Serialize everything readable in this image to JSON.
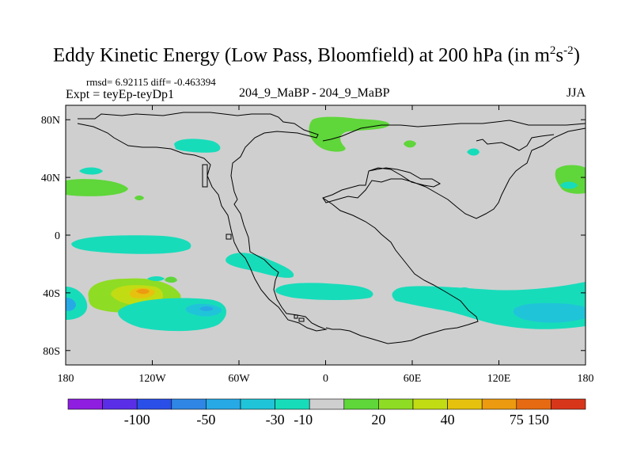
{
  "title_main": "Eddy Kinetic Energy (Low Pass, Bloomfield) at 200 hPa (in m",
  "title_exp1": "2",
  "title_s": "s",
  "title_exp2": "-2",
  "title_close": ")",
  "stats": "rmsd= 6.92115 diff= -0.463394",
  "expt": "Expt = teyEp-teyDp1",
  "case": "204_9_MaBP - 204_9_MaBP",
  "season": "JJA",
  "colors": {
    "ocean": "#cfcfcf",
    "palette": [
      "#8f1ee0",
      "#5a2ee6",
      "#2a4fe8",
      "#2f86e4",
      "#27a9e6",
      "#20c4d8",
      "#17dcba",
      "#cfcfcf",
      "#5fd63a",
      "#8fdc24",
      "#c2dc14",
      "#e6c20e",
      "#ec9a10",
      "#e66a12",
      "#d8361a"
    ]
  },
  "chart_data": {
    "type": "contour_map",
    "variable": "Eddy Kinetic Energy difference",
    "units": "m2 s-2",
    "x_ticks": [
      "180",
      "120W",
      "60W",
      "0",
      "60E",
      "120E",
      "180"
    ],
    "y_ticks": [
      "80N",
      "40N",
      "0",
      "40S",
      "80S"
    ],
    "lon_range": [
      -180,
      180
    ],
    "lat_range": [
      -90,
      90
    ],
    "colorbar_labels": [
      "-100",
      "-50",
      "-30",
      "-10",
      "20",
      "40",
      "75",
      "150"
    ],
    "levels": [
      -150,
      -100,
      -75,
      -50,
      -40,
      -30,
      -20,
      -10,
      10,
      20,
      30,
      40,
      50,
      75,
      100,
      150
    ],
    "features": [
      {
        "lon": -128,
        "lat": -40,
        "value": 50
      },
      {
        "lon": -82,
        "lat": -52,
        "value": -20
      },
      {
        "lon": -172,
        "lat": -48,
        "value": -20
      },
      {
        "lon": 165,
        "lat": -48,
        "value": -20
      },
      {
        "lon": 125,
        "lat": -50,
        "value": -20
      },
      {
        "lon": 12,
        "lat": 75,
        "value": 20
      },
      {
        "lon": 152,
        "lat": 35,
        "value": 20
      },
      {
        "lon": -162,
        "lat": 33,
        "value": 10
      }
    ]
  }
}
